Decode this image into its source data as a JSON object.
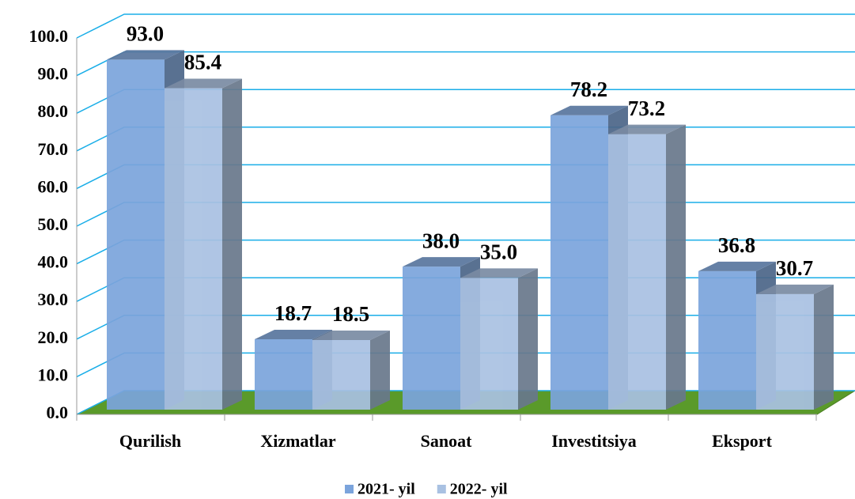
{
  "chart_data": {
    "type": "bar3d",
    "categories": [
      "Qurilish",
      "Xizmatlar",
      "Sanoat",
      "Investitsiya",
      "Eksport"
    ],
    "series": [
      {
        "name": "2021- yil",
        "color": "#7ba4dc",
        "values": [
          93.0,
          18.7,
          38.0,
          78.2,
          36.8
        ],
        "value_labels": [
          "93.0",
          "18.7",
          "38.0",
          "78.2",
          "36.8"
        ]
      },
      {
        "name": "2022- yil",
        "color": "#a9c1e2",
        "values": [
          85.4,
          18.5,
          35.0,
          73.2,
          30.7
        ],
        "value_labels": [
          "85.4",
          "18.5",
          "35.0",
          "73.2",
          "30.7"
        ]
      }
    ],
    "ylim": [
      0,
      100
    ],
    "yticks": [
      {
        "value": 0,
        "label": "0.0"
      },
      {
        "value": 10,
        "label": "10.0"
      },
      {
        "value": 20,
        "label": "20.0"
      },
      {
        "value": 30,
        "label": "30.0"
      },
      {
        "value": 40,
        "label": "40.0"
      },
      {
        "value": 50,
        "label": "50.0"
      },
      {
        "value": 60,
        "label": "60.0"
      },
      {
        "value": 70,
        "label": "70.0"
      },
      {
        "value": 80,
        "label": "80.0"
      },
      {
        "value": 90,
        "label": "90.0"
      },
      {
        "value": 100,
        "label": "100.0"
      }
    ],
    "grid": true,
    "legend": "bottom"
  }
}
